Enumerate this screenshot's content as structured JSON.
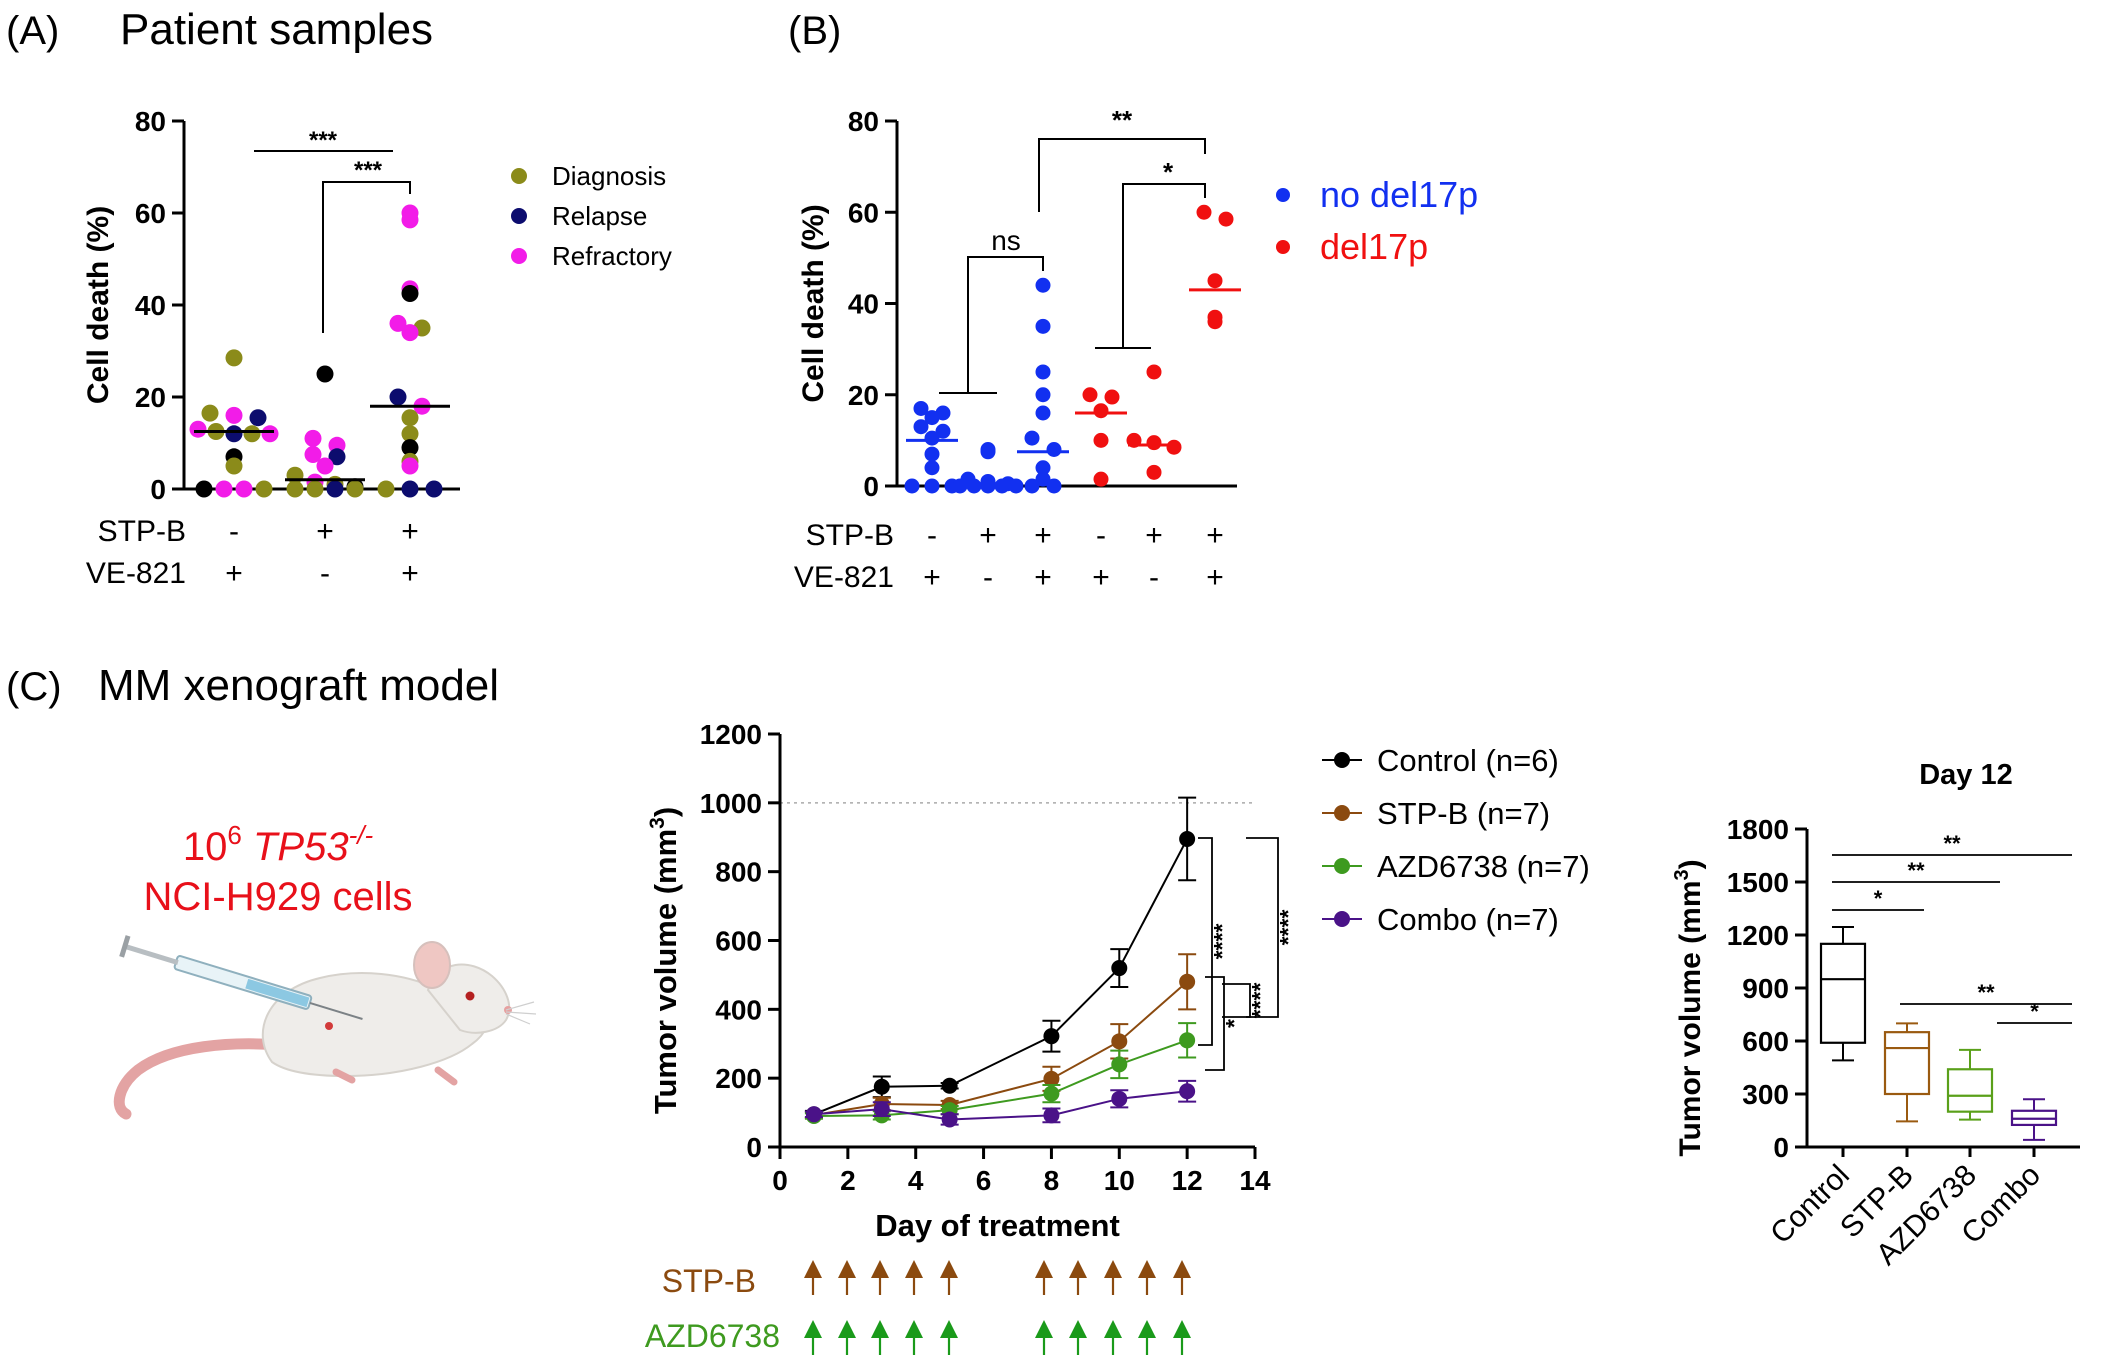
{
  "panels": {
    "a": {
      "letter": "(A)",
      "title": "Patient samples"
    },
    "b": {
      "letter": "(B)"
    },
    "c": {
      "letter": "(C)",
      "title": "MM xenograft model"
    }
  },
  "xenograft": {
    "cells_line1_base": "10",
    "cells_line1_exp": "6",
    "cells_line1_gene": "TP53",
    "cells_line1_gene_sup": "-/-",
    "cells_line2": "NCI-H929 cells",
    "mouse_icon": "mouse-injection-illustration"
  },
  "dosing": {
    "drug1": "STP-B",
    "drug2": "AZD6738",
    "drug1_color": "#8B4A0F",
    "drug2_color": "#1A9A1A",
    "dose_days": [
      1,
      2,
      3,
      4,
      5,
      8,
      9,
      10,
      11,
      12
    ]
  },
  "chart_data": [
    {
      "id": "A",
      "type": "scatter",
      "ylabel": "Cell death (%)",
      "ylim": [
        0,
        80
      ],
      "yticks": [
        0,
        20,
        40,
        60,
        80
      ],
      "treatments": [
        {
          "name": "STP-B",
          "signs": [
            "-",
            "+",
            "+"
          ]
        },
        {
          "name": "VE-821",
          "signs": [
            "+",
            "-",
            "+"
          ]
        }
      ],
      "legend": [
        {
          "name": "Diagnosis",
          "color": "#8B8B1A"
        },
        {
          "name": "Relapse",
          "color": "#0C0C6E"
        },
        {
          "name": "Refractory",
          "color": "#F21CE8"
        }
      ],
      "legend_position": "right",
      "medians": [
        12.5,
        2,
        18
      ],
      "groups": [
        {
          "points": [
            {
              "y": 28.5,
              "c": "#8B8B1A"
            },
            {
              "y": 16.5,
              "c": "#8B8B1A"
            },
            {
              "y": 16,
              "c": "#F21CE8"
            },
            {
              "y": 15.5,
              "c": "#0C0C6E"
            },
            {
              "y": 13,
              "c": "#F21CE8"
            },
            {
              "y": 12.5,
              "c": "#8B8B1A"
            },
            {
              "y": 12,
              "c": "#0C0C6E"
            },
            {
              "y": 12,
              "c": "#8B8B1A"
            },
            {
              "y": 12,
              "c": "#F21CE8"
            },
            {
              "y": 7,
              "c": "#000000"
            },
            {
              "y": 5,
              "c": "#8B8B1A"
            },
            {
              "y": 0,
              "c": "#000000"
            },
            {
              "y": 0,
              "c": "#F21CE8"
            },
            {
              "y": 0,
              "c": "#F21CE8"
            },
            {
              "y": 0,
              "c": "#8B8B1A"
            }
          ]
        },
        {
          "points": [
            {
              "y": 25,
              "c": "#000000"
            },
            {
              "y": 11,
              "c": "#F21CE8"
            },
            {
              "y": 9.5,
              "c": "#F21CE8"
            },
            {
              "y": 7.5,
              "c": "#F21CE8"
            },
            {
              "y": 7,
              "c": "#0C0C6E"
            },
            {
              "y": 5,
              "c": "#F21CE8"
            },
            {
              "y": 3,
              "c": "#8B8B1A"
            },
            {
              "y": 1.5,
              "c": "#F21CE8"
            },
            {
              "y": 1,
              "c": "#8B8B1A"
            },
            {
              "y": 0.5,
              "c": "#000000"
            },
            {
              "y": 0,
              "c": "#8B8B1A"
            },
            {
              "y": 0,
              "c": "#8B8B1A"
            },
            {
              "y": 0,
              "c": "#0C0C6E"
            },
            {
              "y": 0,
              "c": "#8B8B1A"
            }
          ]
        },
        {
          "points": [
            {
              "y": 60,
              "c": "#F21CE8"
            },
            {
              "y": 58.5,
              "c": "#F21CE8"
            },
            {
              "y": 43.5,
              "c": "#F21CE8"
            },
            {
              "y": 42.5,
              "c": "#000000"
            },
            {
              "y": 36,
              "c": "#F21CE8"
            },
            {
              "y": 35,
              "c": "#8B8B1A"
            },
            {
              "y": 34,
              "c": "#F21CE8"
            },
            {
              "y": 20,
              "c": "#0C0C6E"
            },
            {
              "y": 18,
              "c": "#F21CE8"
            },
            {
              "y": 15.5,
              "c": "#8B8B1A"
            },
            {
              "y": 12,
              "c": "#8B8B1A"
            },
            {
              "y": 9,
              "c": "#000000"
            },
            {
              "y": 6,
              "c": "#8B8B1A"
            },
            {
              "y": 5,
              "c": "#F21CE8"
            },
            {
              "y": 0,
              "c": "#8B8B1A"
            },
            {
              "y": 0,
              "c": "#0C0C6E"
            },
            {
              "y": 0,
              "c": "#0C0C6E"
            }
          ]
        }
      ],
      "significance": [
        {
          "from": 0,
          "to": 2,
          "label": "***"
        },
        {
          "from": 1,
          "to": 2,
          "label": "***"
        }
      ]
    },
    {
      "id": "B",
      "type": "scatter",
      "ylabel": "Cell death (%)",
      "ylim": [
        0,
        80
      ],
      "yticks": [
        0,
        20,
        40,
        60,
        80
      ],
      "treatments": [
        {
          "name": "STP-B",
          "signs": [
            "-",
            "+",
            "+",
            "-",
            "+",
            "+"
          ]
        },
        {
          "name": "VE-821",
          "signs": [
            "+",
            "-",
            "+",
            "+",
            "-",
            "+"
          ]
        }
      ],
      "legend": [
        {
          "name": "no del17p",
          "color": "#1230F0"
        },
        {
          "name": "del17p",
          "color": "#F01010"
        }
      ],
      "legend_position": "right",
      "medians": [
        10,
        0.5,
        7.5,
        16,
        9,
        43
      ],
      "groups": [
        {
          "color": "#1230F0",
          "values": [
            17,
            16,
            15,
            13,
            12,
            10.5,
            7,
            4,
            0,
            0,
            0
          ]
        },
        {
          "color": "#1230F0",
          "values": [
            8,
            7.5,
            1.5,
            1,
            0.5,
            0,
            0,
            0,
            0,
            0
          ]
        },
        {
          "color": "#1230F0",
          "values": [
            44,
            35,
            25,
            20,
            16,
            10.5,
            8,
            4,
            1.5,
            0,
            0
          ]
        },
        {
          "color": "#F01010",
          "values": [
            20,
            19.5,
            16.5,
            10,
            1.5
          ]
        },
        {
          "color": "#F01010",
          "values": [
            25,
            10,
            9.5,
            8.5,
            3
          ]
        },
        {
          "color": "#F01010",
          "values": [
            60,
            58.5,
            45,
            37,
            36
          ]
        }
      ],
      "significance": [
        {
          "from": 0,
          "to": 1,
          "label": "",
          "kind": "line"
        },
        {
          "from": 0.5,
          "to": 2,
          "label": "ns",
          "kind": "bracket"
        },
        {
          "from": 3,
          "to": 4,
          "label": "",
          "kind": "line"
        },
        {
          "from": 3.5,
          "to": 5,
          "label": "*",
          "kind": "bracket"
        },
        {
          "from": 1.4,
          "to": 5,
          "label": "**",
          "kind": "bracket"
        }
      ]
    },
    {
      "id": "C-line",
      "type": "line",
      "xlabel": "Day of treatment",
      "ylabel": "Tumor volume (mm",
      "ylabel_sup": "3",
      "ylabel_end": ")",
      "xlim": [
        0,
        14
      ],
      "ylim": [
        0,
        1200
      ],
      "xticks": [
        0,
        2,
        4,
        6,
        8,
        10,
        12,
        14
      ],
      "yticks": [
        0,
        200,
        400,
        600,
        800,
        1000,
        1200
      ],
      "reference_line": 1000,
      "legend_position": "right",
      "x": [
        1,
        3,
        5,
        8,
        10,
        12
      ],
      "series": [
        {
          "name": "Control (n=6)",
          "color": "#000000",
          "values": [
            95,
            175,
            178,
            322,
            520,
            895
          ],
          "err": [
            10,
            30,
            8,
            45,
            55,
            120
          ]
        },
        {
          "name": "STP-B (n=7)",
          "color": "#8B4A0F",
          "values": [
            93,
            125,
            122,
            198,
            307,
            480
          ],
          "err": [
            8,
            18,
            12,
            35,
            50,
            80
          ]
        },
        {
          "name": "AZD6738 (n=7)",
          "color": "#3E9A1F",
          "values": [
            90,
            92,
            107,
            155,
            240,
            310
          ],
          "err": [
            8,
            12,
            12,
            25,
            40,
            50
          ]
        },
        {
          "name": "Combo (n=7)",
          "color": "#4A1288",
          "values": [
            95,
            110,
            80,
            92,
            140,
            162
          ],
          "err": [
            8,
            20,
            15,
            20,
            25,
            30
          ]
        }
      ],
      "significance": [
        {
          "from": "Control (n=6)",
          "to": "STP-B (n=7)",
          "label": "****"
        },
        {
          "from": "AZD6738 (n=7)",
          "to": "Combo (n=7)",
          "label": "*"
        },
        {
          "from": "STP-B (n=7)",
          "to": "Combo (n=7)",
          "label": "****"
        },
        {
          "from": "Control (n=6)",
          "to": "Combo (n=7)",
          "label": "****"
        }
      ]
    },
    {
      "id": "C-box",
      "type": "box",
      "title": "Day 12",
      "ylabel": "Tumor volume (mm",
      "ylabel_sup": "3",
      "ylabel_end": ")",
      "ylim": [
        0,
        1800
      ],
      "yticks": [
        0,
        300,
        600,
        900,
        1200,
        1500,
        1800
      ],
      "categories": [
        "Control",
        "STP-B",
        "AZD6738",
        "Combo"
      ],
      "boxes": [
        {
          "color": "#000000",
          "min": 490,
          "q1": 590,
          "median": 950,
          "q3": 1150,
          "max": 1245
        },
        {
          "color": "#9A5A10",
          "min": 145,
          "q1": 300,
          "median": 560,
          "q3": 650,
          "max": 700
        },
        {
          "color": "#5AA01A",
          "min": 155,
          "q1": 200,
          "median": 290,
          "q3": 440,
          "max": 550
        },
        {
          "color": "#4A1288",
          "min": 40,
          "q1": 125,
          "median": 160,
          "q3": 205,
          "max": 270
        }
      ],
      "significance": [
        {
          "from": 0,
          "to": 1,
          "label": "*"
        },
        {
          "from": 0,
          "to": 2,
          "label": "**"
        },
        {
          "from": 0,
          "to": 3,
          "label": "**"
        },
        {
          "from": 1,
          "to": 3,
          "label": "**"
        },
        {
          "from": 2,
          "to": 3,
          "label": "*"
        }
      ]
    }
  ]
}
